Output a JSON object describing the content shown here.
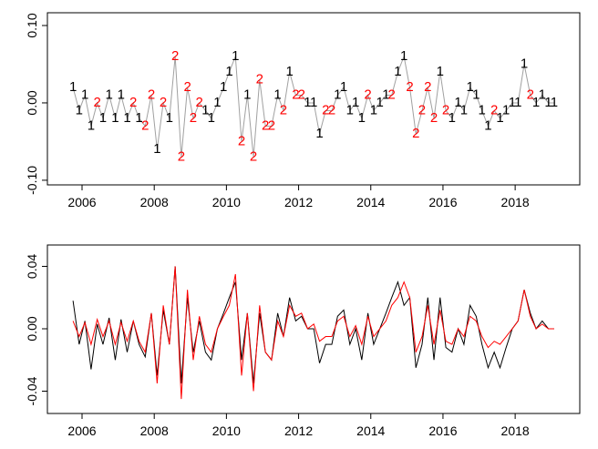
{
  "chart_data": [
    {
      "type": "line",
      "x": [
        2005.75,
        2005.92,
        2006.08,
        2006.25,
        2006.42,
        2006.58,
        2006.75,
        2006.92,
        2007.08,
        2007.25,
        2007.42,
        2007.58,
        2007.75,
        2007.92,
        2008.08,
        2008.25,
        2008.42,
        2008.58,
        2008.75,
        2008.92,
        2009.08,
        2009.25,
        2009.42,
        2009.58,
        2009.75,
        2009.92,
        2010.08,
        2010.25,
        2010.42,
        2010.58,
        2010.75,
        2010.92,
        2011.08,
        2011.25,
        2011.42,
        2011.58,
        2011.75,
        2011.92,
        2012.08,
        2012.25,
        2012.42,
        2012.58,
        2012.75,
        2012.92,
        2013.08,
        2013.25,
        2013.42,
        2013.58,
        2013.75,
        2013.92,
        2014.08,
        2014.25,
        2014.42,
        2014.58,
        2014.75,
        2014.92,
        2015.08,
        2015.25,
        2015.42,
        2015.58,
        2015.75,
        2015.92,
        2016.08,
        2016.25,
        2016.42,
        2016.58,
        2016.75,
        2016.92,
        2017.08,
        2017.25,
        2017.42,
        2017.58,
        2017.75,
        2017.92,
        2018.08,
        2018.25,
        2018.42,
        2018.58,
        2018.75,
        2018.92,
        2019.08
      ],
      "values": [
        0.02,
        -0.01,
        0.01,
        -0.03,
        0.0,
        -0.02,
        0.01,
        -0.02,
        0.01,
        -0.02,
        0.0,
        -0.02,
        -0.03,
        0.01,
        -0.06,
        0.0,
        -0.02,
        0.06,
        -0.07,
        0.02,
        -0.02,
        0.0,
        -0.01,
        -0.02,
        0.0,
        0.02,
        0.04,
        0.06,
        -0.05,
        0.01,
        -0.07,
        0.03,
        -0.03,
        -0.03,
        0.01,
        -0.01,
        0.04,
        0.01,
        0.01,
        0.0,
        0.0,
        -0.04,
        -0.01,
        -0.01,
        0.01,
        0.02,
        -0.01,
        0.0,
        -0.02,
        0.01,
        -0.01,
        0.0,
        0.01,
        0.01,
        0.04,
        0.06,
        0.02,
        -0.04,
        -0.01,
        0.02,
        -0.02,
        0.04,
        -0.01,
        -0.02,
        0.0,
        -0.01,
        0.02,
        0.01,
        -0.01,
        -0.03,
        -0.01,
        -0.02,
        -0.01,
        0.0,
        0.0,
        0.05,
        0.01,
        0.0,
        0.01,
        0.0,
        0.0
      ],
      "point_labels": [
        "1",
        "1",
        "1",
        "1",
        "2",
        "1",
        "1",
        "1",
        "1",
        "1",
        "2",
        "1",
        "2",
        "2",
        "1",
        "2",
        "1",
        "2",
        "2",
        "2",
        "2",
        "2",
        "1",
        "1",
        "1",
        "1",
        "1",
        "1",
        "2",
        "1",
        "2",
        "2",
        "2",
        "2",
        "1",
        "2",
        "1",
        "2",
        "2",
        "1",
        "1",
        "1",
        "2",
        "2",
        "1",
        "1",
        "1",
        "1",
        "1",
        "2",
        "1",
        "1",
        "1",
        "2",
        "1",
        "1",
        "2",
        "2",
        "2",
        "2",
        "2",
        "1",
        "2",
        "1",
        "1",
        "1",
        "1",
        "1",
        "1",
        "1",
        "2",
        "1",
        "1",
        "1",
        "1",
        "1",
        "2",
        "1",
        "1",
        "1",
        "1"
      ],
      "label_colors": {
        "1": "#000000",
        "2": "#ff0000"
      },
      "color": "#a0a0a0",
      "xlim": [
        2005.04,
        2019.79
      ],
      "xticks": [
        2006,
        2008,
        2010,
        2012,
        2014,
        2016,
        2018
      ],
      "ylim": [
        -0.106,
        0.1165
      ],
      "yticks": [
        {
          "value": -0.1,
          "label": "-0.10"
        },
        {
          "value": 0,
          "label": "0.00"
        },
        {
          "value": 0.1,
          "label": "0.10"
        }
      ]
    },
    {
      "type": "line",
      "x": [
        2005.75,
        2005.92,
        2006.08,
        2006.25,
        2006.42,
        2006.58,
        2006.75,
        2006.92,
        2007.08,
        2007.25,
        2007.42,
        2007.58,
        2007.75,
        2007.92,
        2008.08,
        2008.25,
        2008.42,
        2008.58,
        2008.75,
        2008.92,
        2009.08,
        2009.25,
        2009.42,
        2009.58,
        2009.75,
        2009.92,
        2010.08,
        2010.25,
        2010.42,
        2010.58,
        2010.75,
        2010.92,
        2011.08,
        2011.25,
        2011.42,
        2011.58,
        2011.75,
        2011.92,
        2012.08,
        2012.25,
        2012.42,
        2012.58,
        2012.75,
        2012.92,
        2013.08,
        2013.25,
        2013.42,
        2013.58,
        2013.75,
        2013.92,
        2014.08,
        2014.25,
        2014.42,
        2014.58,
        2014.75,
        2014.92,
        2015.08,
        2015.25,
        2015.42,
        2015.58,
        2015.75,
        2015.92,
        2016.08,
        2016.25,
        2016.42,
        2016.58,
        2016.75,
        2016.92,
        2017.08,
        2017.25,
        2017.42,
        2017.58,
        2017.75,
        2017.92,
        2018.08,
        2018.25,
        2018.42,
        2018.58,
        2018.75,
        2018.92,
        2019.08
      ],
      "series": [
        {
          "color": "#000000",
          "values": [
            0.018,
            -0.01,
            0.005,
            -0.026,
            0.003,
            -0.01,
            0.007,
            -0.02,
            0.006,
            -0.015,
            0.005,
            -0.01,
            -0.018,
            0.01,
            -0.03,
            0.012,
            -0.01,
            0.04,
            -0.035,
            0.02,
            -0.015,
            0.005,
            -0.015,
            -0.02,
            0.0,
            0.01,
            0.02,
            0.03,
            -0.02,
            0.01,
            -0.035,
            0.01,
            -0.015,
            -0.02,
            0.01,
            -0.005,
            0.02,
            0.005,
            0.008,
            0.0,
            0.0,
            -0.022,
            -0.01,
            -0.01,
            0.008,
            0.012,
            -0.01,
            0.0,
            -0.02,
            0.01,
            -0.01,
            0.0,
            0.01,
            0.02,
            0.03,
            0.015,
            0.02,
            -0.025,
            -0.01,
            0.02,
            -0.02,
            0.02,
            -0.012,
            -0.015,
            0.0,
            -0.01,
            0.015,
            0.008,
            -0.01,
            -0.025,
            -0.015,
            -0.025,
            -0.012,
            0.0,
            0.005,
            0.025,
            0.01,
            0.0,
            0.005,
            0.0,
            0.0
          ]
        },
        {
          "color": "#ff0000",
          "values": [
            0.005,
            -0.005,
            0.004,
            -0.01,
            0.006,
            -0.005,
            0.005,
            -0.01,
            0.004,
            -0.008,
            0.005,
            -0.008,
            -0.015,
            0.01,
            -0.035,
            0.015,
            -0.01,
            0.04,
            -0.045,
            0.025,
            -0.02,
            0.008,
            -0.01,
            -0.015,
            0.0,
            0.008,
            0.015,
            0.035,
            -0.03,
            0.01,
            -0.04,
            0.015,
            -0.015,
            -0.02,
            0.005,
            -0.005,
            0.015,
            0.008,
            0.01,
            0.0,
            0.003,
            -0.008,
            -0.005,
            -0.005,
            0.005,
            0.008,
            -0.005,
            0.002,
            -0.01,
            0.008,
            -0.005,
            0.0,
            0.005,
            0.015,
            0.02,
            0.03,
            0.02,
            -0.015,
            -0.005,
            0.015,
            -0.01,
            0.012,
            -0.008,
            -0.01,
            0.0,
            -0.005,
            0.008,
            0.005,
            -0.005,
            -0.012,
            -0.008,
            -0.01,
            -0.005,
            0.0,
            0.005,
            0.025,
            0.008,
            0.0,
            0.003,
            0.0,
            0.0
          ]
        }
      ],
      "xlim": [
        2005.04,
        2019.79
      ],
      "xticks": [
        2006,
        2008,
        2010,
        2012,
        2014,
        2016,
        2018
      ],
      "ylim": [
        -0.0543,
        0.0537
      ],
      "yticks": [
        {
          "value": -0.04,
          "label": "-0.04"
        },
        {
          "value": 0,
          "label": "0.00"
        },
        {
          "value": 0.04,
          "label": "0.04"
        }
      ]
    }
  ]
}
